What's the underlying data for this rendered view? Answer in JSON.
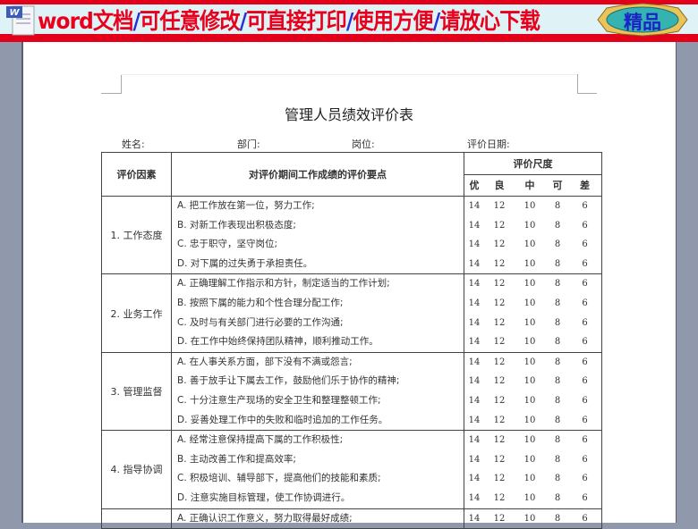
{
  "banner": {
    "text_parts": [
      "word文档",
      "/",
      "可任意修改",
      "/",
      "可直接打印",
      "/",
      "使用方便",
      "/",
      "请放心下载"
    ],
    "badge": "精品",
    "icon": "word-document-icon"
  },
  "document": {
    "title": "管理人员绩效评价表",
    "fields": [
      "姓名:",
      "部门:",
      "岗位:",
      "评价日期:"
    ],
    "headers": {
      "factor": "评价因素",
      "points": "对评价期间工作成绩的评价要点",
      "scale": "评价尺度",
      "levels": [
        "优",
        "良",
        "中",
        "可",
        "差"
      ]
    },
    "groups": [
      {
        "factor": "1. 工作态度",
        "items": [
          "A. 把工作放在第一位，努力工作;",
          "B. 对新工作表现出积极态度;",
          "C. 忠于职守，坚守岗位;",
          "D. 对下属的过失勇于承担责任。"
        ]
      },
      {
        "factor": "2. 业务工作",
        "items": [
          "A. 正确理解工作指示和方针，制定适当的工作计划;",
          "B. 按照下属的能力和个性合理分配工作;",
          "C. 及时与有关部门进行必要的工作沟通;",
          "D. 在工作中始终保持团队精神，顺利推动工作。"
        ]
      },
      {
        "factor": "3. 管理监督",
        "items": [
          "A. 在人事关系方面，部下没有不满或怨言;",
          "B. 善于放手让下属去工作，鼓励他们乐于协作的精神;",
          "C. 十分注意生产现场的安全卫生和整理整顿工作;",
          "D. 妥善处理工作中的失败和临时追加的工作任务。"
        ]
      },
      {
        "factor": "4. 指导协调",
        "items": [
          "A. 经常注意保持提高下属的工作积极性;",
          "B. 主动改善工作和提高效率;",
          "C. 积极培训、辅导部下，提高他们的技能和素质;",
          "D. 注意实施目标管理，使工作协调进行。"
        ]
      },
      {
        "factor": "",
        "items": [
          "A. 正确认识工作意义，努力取得最好成绩;"
        ]
      }
    ],
    "scores": [
      "14",
      "12",
      "10",
      "8",
      "6"
    ]
  }
}
